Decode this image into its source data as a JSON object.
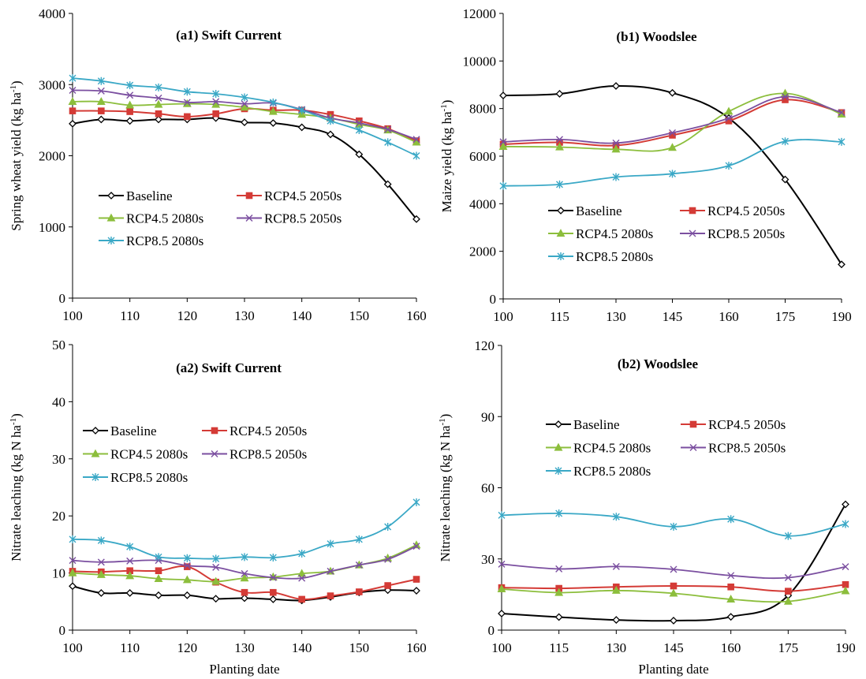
{
  "figure": {
    "series_colors": [
      "#000000",
      "#d43b36",
      "#8cbe3c",
      "#7b4fa0",
      "#3aa8c6"
    ],
    "series_markers": [
      "diamond",
      "square",
      "triangle",
      "x",
      "asterisk"
    ]
  },
  "chart_data": [
    {
      "id": "a1",
      "type": "line",
      "title": "(a1) Swift Current",
      "ylabel": "Spring wheat yield (kg ha⁻¹)",
      "xlabel": "",
      "x": [
        100,
        105,
        110,
        115,
        120,
        125,
        130,
        135,
        140,
        145,
        150,
        155,
        160
      ],
      "xticks": [
        100,
        110,
        120,
        130,
        140,
        150,
        160
      ],
      "xlim": [
        100,
        160
      ],
      "ylim": [
        0,
        4000
      ],
      "yticks": [
        0,
        1000,
        2000,
        3000,
        4000
      ],
      "grid": false,
      "legend_placement": "lower-left",
      "series": [
        {
          "name": "Baseline",
          "values": [
            2450,
            2510,
            2490,
            2510,
            2510,
            2530,
            2470,
            2460,
            2400,
            2300,
            2020,
            1600,
            1110
          ]
        },
        {
          "name": "RCP4.5 2050s",
          "values": [
            2630,
            2630,
            2620,
            2590,
            2550,
            2590,
            2660,
            2640,
            2640,
            2580,
            2490,
            2380,
            2210
          ]
        },
        {
          "name": "RCP4.5 2080s",
          "values": [
            2760,
            2760,
            2710,
            2720,
            2730,
            2720,
            2680,
            2620,
            2580,
            2530,
            2440,
            2360,
            2190
          ]
        },
        {
          "name": "RCP8.5 2050s",
          "values": [
            2920,
            2910,
            2850,
            2810,
            2750,
            2760,
            2730,
            2740,
            2650,
            2530,
            2460,
            2370,
            2230
          ]
        },
        {
          "name": "RCP8.5 2080s",
          "values": [
            3090,
            3050,
            2990,
            2960,
            2900,
            2870,
            2820,
            2750,
            2640,
            2490,
            2360,
            2190,
            2000
          ]
        }
      ]
    },
    {
      "id": "b1",
      "type": "line",
      "title": "(b1) Woodslee",
      "ylabel": "Maize yield (kg  ha⁻¹)",
      "xlabel": "",
      "x": [
        100,
        115,
        130,
        145,
        160,
        175,
        190
      ],
      "xticks": [
        100,
        115,
        130,
        145,
        160,
        175,
        190
      ],
      "xlim": [
        100,
        190
      ],
      "ylim": [
        0,
        12000
      ],
      "yticks": [
        0,
        2000,
        4000,
        6000,
        8000,
        10000,
        12000
      ],
      "grid": false,
      "legend_placement": "lower-left",
      "series": [
        {
          "name": "Baseline",
          "values": [
            8550,
            8620,
            8950,
            8660,
            7600,
            5020,
            1450
          ]
        },
        {
          "name": "RCP4.5 2050s",
          "values": [
            6500,
            6580,
            6450,
            6880,
            7480,
            8370,
            7830
          ]
        },
        {
          "name": "RCP4.5 2080s",
          "values": [
            6400,
            6380,
            6290,
            6360,
            7880,
            8640,
            7760
          ]
        },
        {
          "name": "RCP8.5 2050s",
          "values": [
            6600,
            6700,
            6550,
            6980,
            7590,
            8500,
            7830
          ]
        },
        {
          "name": "RCP8.5 2080s",
          "values": [
            4750,
            4810,
            5120,
            5260,
            5600,
            6620,
            6600
          ]
        }
      ]
    },
    {
      "id": "a2",
      "type": "line",
      "title": "(a2) Swift Current",
      "ylabel": "Nitrate leaching (kg N ha⁻¹)",
      "xlabel": "Planting date",
      "x": [
        100,
        105,
        110,
        115,
        120,
        125,
        130,
        135,
        140,
        145,
        150,
        155,
        160
      ],
      "xticks": [
        100,
        110,
        120,
        130,
        140,
        150,
        160
      ],
      "xlim": [
        100,
        160
      ],
      "ylim": [
        0,
        50
      ],
      "yticks": [
        0,
        10,
        20,
        30,
        40,
        50
      ],
      "grid": false,
      "legend_placement": "middle-left",
      "series": [
        {
          "name": "Baseline",
          "values": [
            7.7,
            6.5,
            6.5,
            6.1,
            6.1,
            5.5,
            5.6,
            5.4,
            5.2,
            5.8,
            6.6,
            7.0,
            6.9
          ]
        },
        {
          "name": "RCP4.5 2050s",
          "values": [
            10.3,
            10.2,
            10.4,
            10.4,
            11.1,
            8.4,
            6.6,
            6.6,
            5.4,
            6.0,
            6.7,
            7.8,
            8.9
          ]
        },
        {
          "name": "RCP4.5 2080s",
          "values": [
            10.0,
            9.7,
            9.5,
            9.0,
            8.8,
            8.5,
            9.1,
            9.3,
            9.9,
            10.3,
            11.4,
            12.6,
            14.9
          ]
        },
        {
          "name": "RCP8.5 2050s",
          "values": [
            12.2,
            11.9,
            12.1,
            12.2,
            11.3,
            11.0,
            9.9,
            9.2,
            9.1,
            10.3,
            11.4,
            12.4,
            14.7
          ]
        },
        {
          "name": "RCP8.5 2080s",
          "values": [
            15.9,
            15.7,
            14.6,
            12.8,
            12.6,
            12.5,
            12.8,
            12.7,
            13.4,
            15.1,
            15.9,
            18.1,
            22.4
          ]
        }
      ]
    },
    {
      "id": "b2",
      "type": "line",
      "title": "(b2) Woodslee",
      "ylabel": "Nitrate leaching (kg N  ha⁻¹)",
      "xlabel": "Planting date",
      "x": [
        100,
        115,
        130,
        145,
        160,
        175,
        190
      ],
      "xticks": [
        100,
        115,
        130,
        145,
        160,
        175,
        190
      ],
      "xlim": [
        100,
        190
      ],
      "ylim": [
        0,
        120
      ],
      "yticks": [
        0,
        30,
        60,
        90,
        120
      ],
      "grid": false,
      "legend_placement": "middle-left",
      "series": [
        {
          "name": "Baseline",
          "values": [
            7.0,
            5.5,
            4.3,
            4.0,
            5.6,
            14.6,
            53.0
          ]
        },
        {
          "name": "RCP4.5 2050s",
          "values": [
            17.9,
            17.6,
            18.2,
            18.6,
            18.2,
            16.4,
            19.2
          ]
        },
        {
          "name": "RCP4.5 2080s",
          "values": [
            17.3,
            15.8,
            16.7,
            15.5,
            13.0,
            12.1,
            16.5
          ]
        },
        {
          "name": "RCP8.5 2050s",
          "values": [
            27.8,
            25.8,
            26.8,
            25.6,
            23.0,
            22.1,
            26.7
          ]
        },
        {
          "name": "RCP8.5 2080s",
          "values": [
            48.4,
            49.2,
            47.8,
            43.6,
            46.8,
            39.7,
            44.7
          ]
        }
      ]
    }
  ]
}
